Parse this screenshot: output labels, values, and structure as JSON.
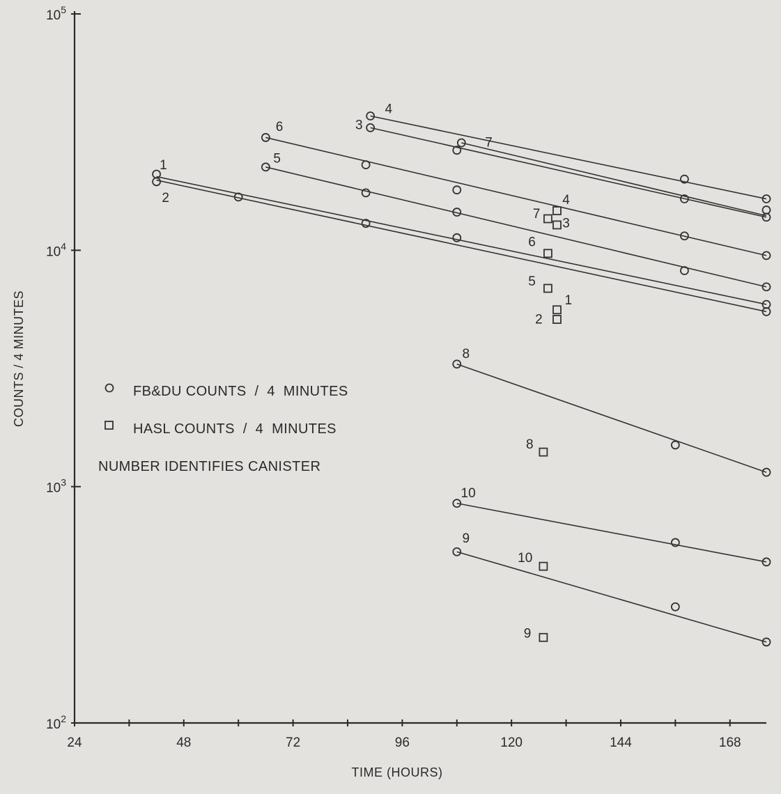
{
  "chart_data": {
    "type": "scatter",
    "title": "",
    "xlabel": "TIME (HOURS)",
    "ylabel": "COUNTS / 4 MINUTES",
    "xlim": [
      24,
      176
    ],
    "ylim": [
      100,
      100000
    ],
    "y_scale": "log",
    "x_ticks": [
      24,
      48,
      72,
      96,
      120,
      144,
      168
    ],
    "x_tick_labels": [
      "24",
      "48",
      "72",
      "96",
      "120",
      "144",
      "168"
    ],
    "y_ticks": [
      {
        "value": 100,
        "base": "10",
        "exp": "2"
      },
      {
        "value": 1000,
        "base": "10",
        "exp": "3"
      },
      {
        "value": 10000,
        "base": "10",
        "exp": "4"
      },
      {
        "value": 100000,
        "base": "10",
        "exp": "5"
      }
    ],
    "legend": {
      "placement": "left-middle",
      "entries": [
        {
          "marker": "circle",
          "label": "FB&DU COUNTS  /  4  MINUTES"
        },
        {
          "marker": "square",
          "label": "HASL COUNTS  /  4  MINUTES"
        }
      ],
      "note": "NUMBER IDENTIFIES CANISTER"
    },
    "series": [
      {
        "canister": "1",
        "marker": "circle",
        "x": [
          42,
          176
        ],
        "y": [
          21000,
          5900
        ]
      },
      {
        "canister": "2",
        "marker": "circle",
        "x": [
          42,
          60,
          88,
          108,
          176
        ],
        "y": [
          19500,
          16800,
          13000,
          11300,
          5500
        ]
      },
      {
        "canister": "3",
        "marker": "circle",
        "x": [
          89,
          108,
          158,
          176
        ],
        "y": [
          33000,
          26500,
          16500,
          13800
        ]
      },
      {
        "canister": "4",
        "marker": "circle",
        "x": [
          89,
          176
        ],
        "y": [
          37000,
          14800
        ]
      },
      {
        "canister": "5",
        "marker": "circle",
        "x": [
          66,
          88,
          108,
          158,
          176
        ],
        "y": [
          22500,
          17500,
          14500,
          8200,
          7000
        ]
      },
      {
        "canister": "6",
        "marker": "circle",
        "x": [
          66,
          88,
          108,
          158,
          176
        ],
        "y": [
          30000,
          23000,
          18000,
          11500,
          9500
        ]
      },
      {
        "canister": "7",
        "marker": "circle",
        "x": [
          109,
          158,
          176
        ],
        "y": [
          28500,
          20000,
          16500
        ]
      },
      {
        "canister": "8",
        "marker": "circle",
        "x": [
          108,
          156,
          176
        ],
        "y": [
          3300,
          1500,
          1150
        ]
      },
      {
        "canister": "9",
        "marker": "circle",
        "x": [
          108,
          156,
          176
        ],
        "y": [
          530,
          310,
          220
        ]
      },
      {
        "canister": "10",
        "marker": "circle",
        "x": [
          108,
          156,
          176
        ],
        "y": [
          850,
          580,
          480
        ]
      }
    ],
    "hasl_points": [
      {
        "canister": "1",
        "x": 130,
        "y": 5600
      },
      {
        "canister": "2",
        "x": 130,
        "y": 5100
      },
      {
        "canister": "3",
        "x": 130,
        "y": 12800
      },
      {
        "canister": "4",
        "x": 130,
        "y": 14700
      },
      {
        "canister": "5",
        "x": 128,
        "y": 6900
      },
      {
        "canister": "6",
        "x": 128,
        "y": 9700
      },
      {
        "canister": "7",
        "x": 128,
        "y": 13600
      },
      {
        "canister": "8",
        "x": 127,
        "y": 1400
      },
      {
        "canister": "9",
        "x": 127,
        "y": 230
      },
      {
        "canister": "10",
        "x": 127,
        "y": 460
      }
    ],
    "fit_lines": [
      {
        "canister": "1",
        "from": [
          42,
          20500
        ],
        "to": [
          176,
          5900
        ]
      },
      {
        "canister": "2",
        "from": [
          42,
          19800
        ],
        "to": [
          176,
          5500
        ]
      },
      {
        "canister": "3",
        "from": [
          89,
          33000
        ],
        "to": [
          176,
          13800
        ]
      },
      {
        "canister": "4",
        "from": [
          89,
          37000
        ],
        "to": [
          176,
          16500
        ]
      },
      {
        "canister": "5",
        "from": [
          66,
          22500
        ],
        "to": [
          176,
          7000
        ]
      },
      {
        "canister": "6",
        "from": [
          66,
          30000
        ],
        "to": [
          176,
          9500
        ]
      },
      {
        "canister": "7",
        "from": [
          109,
          28500
        ],
        "to": [
          176,
          14000
        ]
      },
      {
        "canister": "8",
        "from": [
          108,
          3300
        ],
        "to": [
          176,
          1150
        ]
      },
      {
        "canister": "9",
        "from": [
          108,
          530
        ],
        "to": [
          176,
          220
        ]
      },
      {
        "canister": "10",
        "from": [
          108,
          850
        ],
        "to": [
          176,
          480
        ]
      }
    ],
    "series_labels": [
      {
        "text": "1",
        "x": 43.5,
        "y": 22000,
        "marker": "circle"
      },
      {
        "text": "2",
        "x": 44,
        "y": 16000,
        "marker": "circle"
      },
      {
        "text": "3",
        "x": 86.5,
        "y": 32500,
        "marker": "circle"
      },
      {
        "text": "4",
        "x": 93,
        "y": 38000,
        "marker": "circle"
      },
      {
        "text": "5",
        "x": 68.5,
        "y": 23500,
        "marker": "circle"
      },
      {
        "text": "6",
        "x": 69,
        "y": 32000,
        "marker": "circle"
      },
      {
        "text": "7",
        "x": 115,
        "y": 27500,
        "marker": "circle"
      },
      {
        "text": "8",
        "x": 110,
        "y": 3500,
        "marker": "circle"
      },
      {
        "text": "9",
        "x": 110,
        "y": 580,
        "marker": "circle"
      },
      {
        "text": "10",
        "x": 110.5,
        "y": 900,
        "marker": "circle"
      },
      {
        "text": "1",
        "x": 132.5,
        "y": 5900,
        "marker": "square"
      },
      {
        "text": "2",
        "x": 126,
        "y": 4900,
        "marker": "square"
      },
      {
        "text": "3",
        "x": 132,
        "y": 12500,
        "marker": "square"
      },
      {
        "text": "4",
        "x": 132,
        "y": 15700,
        "marker": "square"
      },
      {
        "text": "5",
        "x": 124.5,
        "y": 7100,
        "marker": "square"
      },
      {
        "text": "6",
        "x": 124.5,
        "y": 10400,
        "marker": "square"
      },
      {
        "text": "7",
        "x": 125.5,
        "y": 13700,
        "marker": "square"
      },
      {
        "text": "8",
        "x": 124,
        "y": 1450,
        "marker": "square"
      },
      {
        "text": "9",
        "x": 123.5,
        "y": 230,
        "marker": "square"
      },
      {
        "text": "10",
        "x": 123,
        "y": 480,
        "marker": "square"
      }
    ],
    "grid": false
  }
}
